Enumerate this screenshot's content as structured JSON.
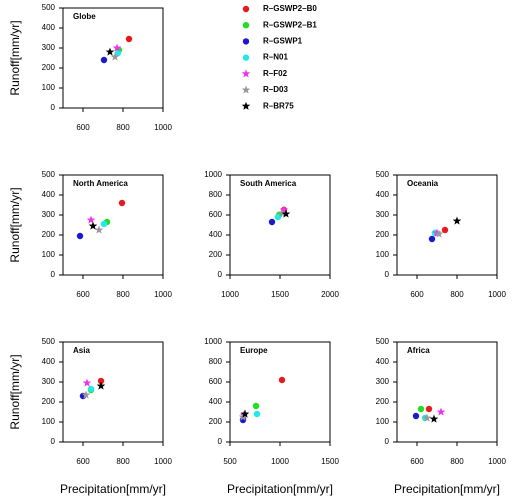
{
  "legend": {
    "series": [
      {
        "name": "R–GSWP2–B0",
        "color": "#e41a1c",
        "marker": "circle"
      },
      {
        "name": "R–GSWP2–B1",
        "color": "#22dd22",
        "marker": "circle"
      },
      {
        "name": "R–GSWP1",
        "color": "#1a1acc",
        "marker": "circle"
      },
      {
        "name": "R–N01",
        "color": "#22e8e8",
        "marker": "circle"
      },
      {
        "name": "R–F02",
        "color": "#ee33ee",
        "marker": "star"
      },
      {
        "name": "R–D03",
        "color": "#999999",
        "marker": "star"
      },
      {
        "name": "R–BR75",
        "color": "#000000",
        "marker": "star"
      }
    ]
  },
  "y_labels": [
    "Runoff[mm/yr]",
    "Runoff[mm/yr]",
    "Runoff[mm/yr]"
  ],
  "x_labels": [
    "Precipitation[mm/yr]",
    "Precipitation[mm/yr]",
    "Precipitation[mm/yr]"
  ],
  "chart_data": [
    {
      "type": "scatter",
      "title": "Globe",
      "xlim": [
        500,
        1000
      ],
      "xticks": [
        600,
        800,
        1000
      ],
      "ylim": [
        0,
        500
      ],
      "yticks": [
        0,
        100,
        200,
        300,
        400,
        500
      ],
      "x": [
        830,
        780,
        705,
        775,
        770,
        760,
        735
      ],
      "y": [
        345,
        290,
        240,
        275,
        300,
        255,
        280
      ]
    },
    {
      "type": "scatter",
      "title": "North America",
      "xlim": [
        500,
        1000
      ],
      "xticks": [
        600,
        800,
        1000
      ],
      "ylim": [
        0,
        500
      ],
      "yticks": [
        0,
        100,
        200,
        300,
        400,
        500
      ],
      "x": [
        795,
        720,
        585,
        705,
        640,
        680,
        650
      ],
      "y": [
        360,
        265,
        195,
        255,
        275,
        225,
        245
      ]
    },
    {
      "type": "scatter",
      "title": "South America",
      "xlim": [
        1000,
        2000
      ],
      "xticks": [
        1000,
        1500,
        2000
      ],
      "ylim": [
        0,
        1000
      ],
      "yticks": [
        0,
        200,
        400,
        600,
        800,
        1000
      ],
      "x": [
        1540,
        1490,
        1420,
        1480,
        1540,
        1520,
        1560
      ],
      "y": [
        650,
        600,
        530,
        580,
        650,
        620,
        610
      ]
    },
    {
      "type": "scatter",
      "title": "Oceania",
      "xlim": [
        500,
        1000
      ],
      "xticks": [
        600,
        800,
        1000
      ],
      "ylim": [
        0,
        500
      ],
      "yticks": [
        0,
        100,
        200,
        300,
        400,
        500
      ],
      "x": [
        740,
        690,
        675,
        690,
        700,
        710,
        800
      ],
      "y": [
        225,
        210,
        180,
        210,
        210,
        205,
        270
      ]
    },
    {
      "type": "scatter",
      "title": "Asia",
      "xlim": [
        500,
        1000
      ],
      "xticks": [
        600,
        800,
        1000
      ],
      "ylim": [
        0,
        500
      ],
      "yticks": [
        0,
        100,
        200,
        300,
        400,
        500
      ],
      "x": [
        690,
        640,
        600,
        640,
        620,
        615,
        690
      ],
      "y": [
        305,
        260,
        230,
        265,
        295,
        235,
        280
      ]
    },
    {
      "type": "scatter",
      "title": "Europe",
      "xlim": [
        500,
        1500
      ],
      "xticks": [
        500,
        1000,
        1500
      ],
      "ylim": [
        0,
        1000
      ],
      "yticks": [
        0,
        200,
        400,
        600,
        800,
        1000
      ],
      "x": [
        1020,
        760,
        630,
        770,
        640,
        630,
        650
      ],
      "y": [
        620,
        360,
        220,
        280,
        270,
        250,
        280
      ]
    },
    {
      "type": "scatter",
      "title": "Africa",
      "xlim": [
        500,
        1000
      ],
      "xticks": [
        600,
        800,
        1000
      ],
      "ylim": [
        0,
        500
      ],
      "yticks": [
        0,
        100,
        200,
        300,
        400,
        500
      ],
      "x": [
        660,
        620,
        595,
        640,
        720,
        650,
        685
      ],
      "y": [
        165,
        165,
        130,
        120,
        150,
        120,
        115
      ]
    }
  ]
}
